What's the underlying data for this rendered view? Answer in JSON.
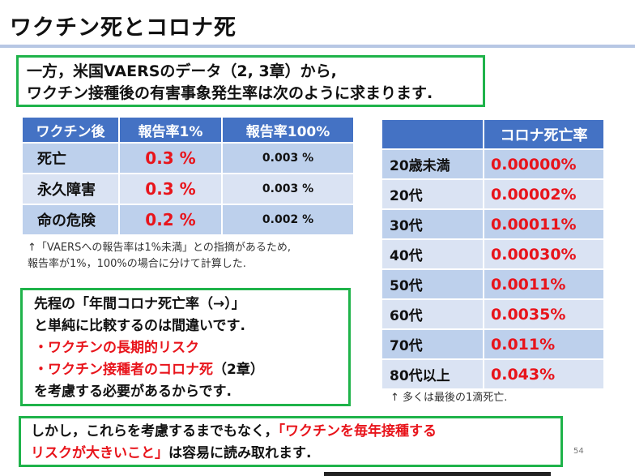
{
  "title": "ワクチン死とコロナ死",
  "intro": {
    "line1": "一方，米国VAERSのデータ（2, 3章）から,",
    "line2": "ワクチン接種後の有害事象発生率は次のように求まります."
  },
  "vaccine_table": {
    "headers": [
      "ワクチン後",
      "報告率1%",
      "報告率100%"
    ],
    "rows": [
      {
        "label": "死亡",
        "rate_1": "0.3 %",
        "rate_100": "0.003 %"
      },
      {
        "label": "永久障害",
        "rate_1": "0.3 %",
        "rate_100": "0.003 %"
      },
      {
        "label": "命の危険",
        "rate_1": "0.2 %",
        "rate_100": "0.002 %"
      }
    ]
  },
  "note1": {
    "line1": "↑「VAERSへの報告率は1%未満」との指摘があるため,",
    "line2": "報告率が1%，100%の場合に分けて計算した."
  },
  "middle": {
    "line1": "先程の「年間コロナ死亡率（→）」",
    "line2": "と単純に比較するのは間違いです.",
    "bullet1": "・ワクチンの長期的リスク",
    "bullet2": "・ワクチン接種者のコロナ死",
    "bullet2_suffix": "（2章）",
    "line5": "を考慮する必要があるからです."
  },
  "covid_table": {
    "headers": [
      "",
      "コロナ死亡率"
    ],
    "rows": [
      {
        "age": "20歳未満",
        "rate": "0.00000%"
      },
      {
        "age": "20代",
        "rate": "0.00002%"
      },
      {
        "age": "30代",
        "rate": "0.00011%"
      },
      {
        "age": "40代",
        "rate": "0.00030%"
      },
      {
        "age": "50代",
        "rate": "0.0011%"
      },
      {
        "age": "60代",
        "rate": "0.0035%"
      },
      {
        "age": "70代",
        "rate": "0.011%"
      },
      {
        "age": "80代以上",
        "rate": "0.043%"
      }
    ]
  },
  "note2": "↑ 多くは最後の1滴死亡.",
  "bottom": {
    "part1": "しかし，これらを考慮するまでもなく，",
    "highlight1": "「ワクチンを毎年接種する",
    "highlight2": "リスクが大きいこと」",
    "part2": "は容易に読み取れます."
  },
  "page_number": "54",
  "colors": {
    "accent": "#4472c4",
    "highlight": "#e8141b",
    "frame": "#1fb34a"
  }
}
